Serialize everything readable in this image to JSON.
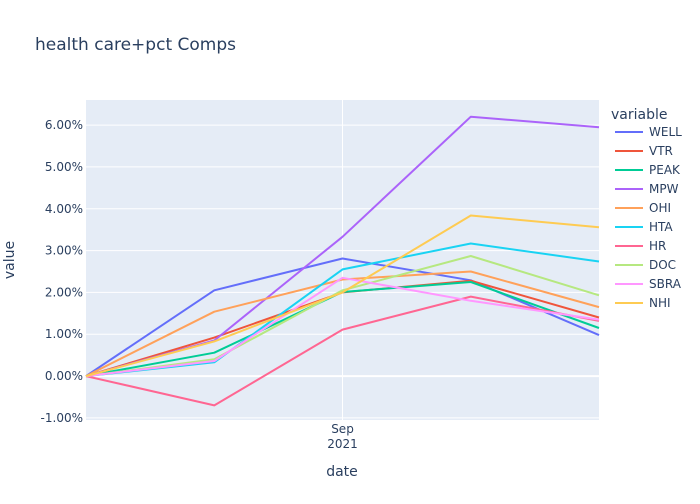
{
  "chart_data": {
    "type": "line",
    "title": "health care+pct Comps",
    "xlabel": "date",
    "ylabel": "value",
    "legend_title": "variable",
    "legend_position": "right",
    "grid": true,
    "x_ticks": [
      {
        "label_line1": "Sep",
        "label_line2": "2021",
        "x": 2
      }
    ],
    "y_ticks": [
      "-1.00%",
      "0.00%",
      "1.00%",
      "2.00%",
      "3.00%",
      "4.00%",
      "5.00%",
      "6.00%"
    ],
    "y_tick_values": [
      -0.01,
      0.0,
      0.01,
      0.02,
      0.03,
      0.04,
      0.05,
      0.06
    ],
    "xlim": [
      0,
      4
    ],
    "ylim": [
      -0.0105,
      0.066
    ],
    "x": [
      0,
      1,
      2,
      3,
      4
    ],
    "series": [
      {
        "name": "WELL",
        "color": "#636efa",
        "values": [
          0.0,
          0.0205,
          0.0281,
          0.0229,
          0.0098
        ]
      },
      {
        "name": "VTR",
        "color": "#EF553B",
        "values": [
          0.0,
          0.0092,
          0.02,
          0.0228,
          0.014
        ]
      },
      {
        "name": "PEAK",
        "color": "#00cc96",
        "values": [
          0.0,
          0.0056,
          0.0201,
          0.0225,
          0.0115
        ]
      },
      {
        "name": "MPW",
        "color": "#ab63fa",
        "values": [
          0.0,
          0.0085,
          0.0333,
          0.062,
          0.0595
        ]
      },
      {
        "name": "OHI",
        "color": "#FFA15A",
        "values": [
          0.0,
          0.0154,
          0.0231,
          0.025,
          0.0165
        ]
      },
      {
        "name": "HTA",
        "color": "#19d3f3",
        "values": [
          0.0,
          0.0033,
          0.0255,
          0.0317,
          0.0274
        ]
      },
      {
        "name": "HR",
        "color": "#FF6692",
        "values": [
          0.0,
          -0.007,
          0.0111,
          0.019,
          0.0132
        ]
      },
      {
        "name": "DOC",
        "color": "#B6E880",
        "values": [
          0.0,
          0.004,
          0.0205,
          0.0287,
          0.0193
        ]
      },
      {
        "name": "SBRA",
        "color": "#FF97FF",
        "values": [
          0.0,
          0.0036,
          0.0235,
          0.018,
          0.0135
        ]
      },
      {
        "name": "NHI",
        "color": "#FECB52",
        "values": [
          0.0,
          0.0083,
          0.02,
          0.0384,
          0.0356
        ]
      }
    ]
  }
}
